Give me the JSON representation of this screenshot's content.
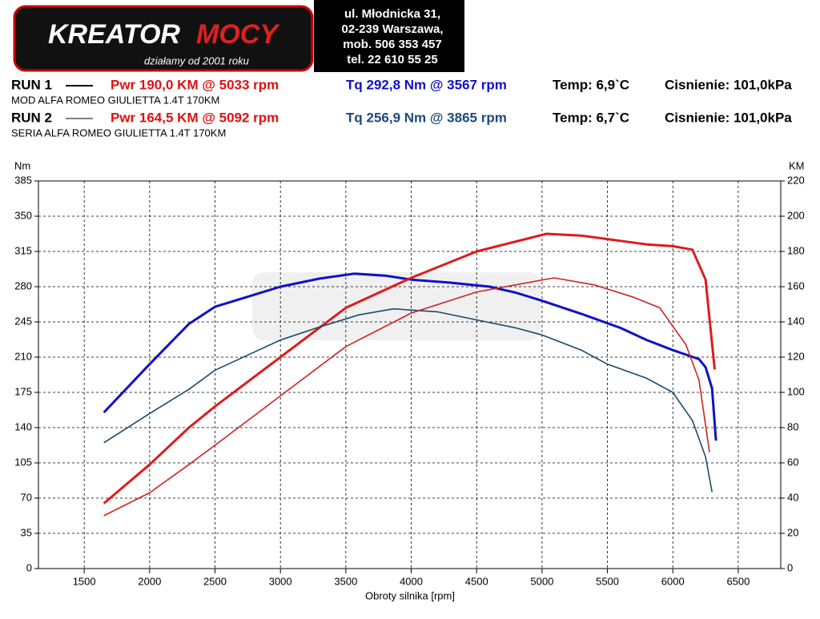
{
  "header": {
    "logo_1": "KREATOR",
    "logo_2": "MOCY",
    "slogan": "działamy od 2001 roku",
    "address": [
      "ul. Młodnicka 31,",
      "02-239  Warszawa,",
      "mob.  506 353 457",
      "tel.  22 610 55 25"
    ]
  },
  "runs": [
    {
      "run": "RUN 1",
      "pwr": "Pwr  190,0 KM @ 5033 rpm",
      "tq": "Tq 292,8 Nm @ 3567 rpm",
      "temp": "Temp: 6,9`C",
      "pressure": "Cisnienie: 101,0kPa",
      "desc": "MOD ALFA ROMEO GIULIETTA 1.4T 170KM",
      "tq_color": "#1010c8"
    },
    {
      "run": "RUN 2",
      "pwr": "Pwr  164,5 KM @ 5092 rpm",
      "tq": "Tq 256,9 Nm @ 3865 rpm",
      "temp": "Temp: 6,7`C",
      "pressure": "Cisnienie: 101,0kPa",
      "desc": "SERIA ALFA ROMEO GIULIETTA 1.4T 170KM",
      "tq_color": "#1a4a7a"
    }
  ],
  "chart_data": {
    "type": "line",
    "y_label": "Nm",
    "y2_label": "KM",
    "x_label": "Obroty silnika [rpm]",
    "grid": true,
    "xlim": [
      1150,
      6825
    ],
    "xticks": [
      1500,
      2000,
      2500,
      3000,
      3500,
      4000,
      4500,
      5000,
      5500,
      6000,
      6500
    ],
    "ylim": [
      0,
      385
    ],
    "yticks": [
      0,
      35,
      70,
      105,
      140,
      175,
      210,
      245,
      280,
      315,
      350,
      385
    ],
    "y2lim": [
      0,
      220
    ],
    "y2ticks": [
      0,
      20,
      40,
      60,
      80,
      100,
      120,
      140,
      160,
      180,
      200,
      220
    ],
    "series": [
      {
        "color": "#1010c8",
        "line_width": 3,
        "x": [
          1650,
          2000,
          2300,
          2500,
          2750,
          3000,
          3300,
          3567,
          3800,
          4000,
          4300,
          4600,
          4800,
          5000,
          5300,
          5600,
          5800,
          6000,
          6200,
          6250,
          6300,
          6330
        ],
        "values": [
          155,
          203,
          243,
          260,
          270,
          280,
          288,
          293,
          291,
          287,
          284,
          280,
          274,
          266,
          253,
          239,
          227,
          217,
          208,
          200,
          179,
          127
        ]
      },
      {
        "color": "#dd1c1c",
        "line_width": 3,
        "axis": "y2",
        "x": [
          1650,
          2000,
          2300,
          2500,
          3000,
          3500,
          4000,
          4500,
          5033,
          5300,
          5600,
          5800,
          6000,
          6150,
          6250,
          6320
        ],
        "values": [
          37,
          59,
          80,
          92,
          120,
          148,
          165,
          180,
          190,
          189,
          186,
          184,
          183,
          181,
          164,
          113
        ]
      },
      {
        "color": "#1a4a6a",
        "line_width": 1.6,
        "x": [
          1650,
          2000,
          2300,
          2500,
          2800,
          3000,
          3300,
          3600,
          3865,
          4200,
          4500,
          4800,
          5000,
          5300,
          5500,
          5800,
          6000,
          6150,
          6250,
          6300
        ],
        "values": [
          125,
          154,
          178,
          197,
          215,
          227,
          240,
          252,
          258,
          255,
          247,
          239,
          232,
          217,
          203,
          189,
          175,
          147,
          111,
          76
        ]
      },
      {
        "color": "#d42020",
        "line_width": 1.6,
        "axis": "y2",
        "x": [
          1650,
          2000,
          2300,
          2500,
          3000,
          3500,
          4000,
          4500,
          5092,
          5400,
          5700,
          5900,
          6100,
          6200,
          6280
        ],
        "values": [
          30,
          43,
          59,
          70,
          98,
          126,
          145,
          157,
          165,
          161,
          154,
          148,
          127,
          107,
          66
        ]
      }
    ]
  }
}
